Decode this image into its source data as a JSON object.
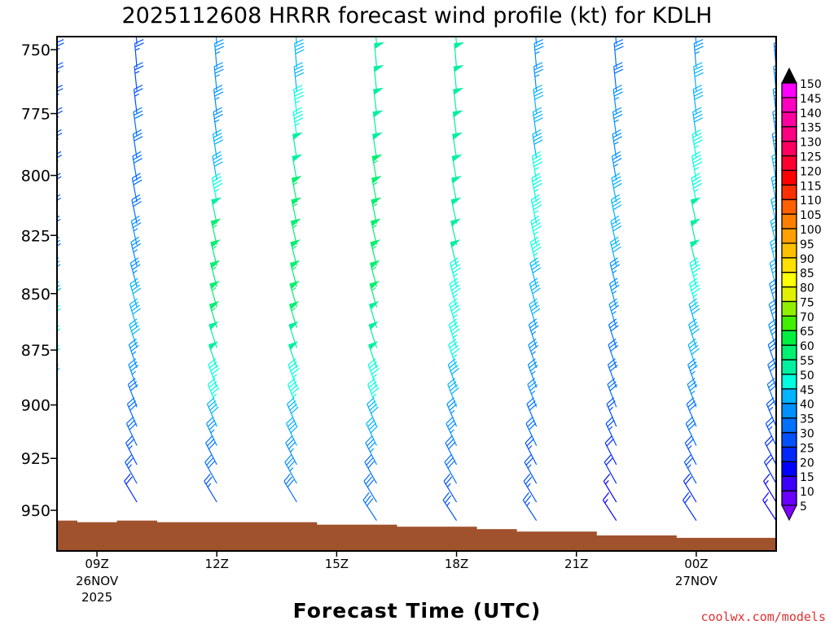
{
  "chart_data": {
    "type": "wind-barb-profile",
    "title": "2025112608 HRRR forecast wind profile (kt) for KDLH",
    "xlabel": "Forecast Time (UTC)",
    "ylabel": "",
    "credit": "coolwx.com/models",
    "ylim": [
      745,
      970
    ],
    "yticks": [
      750,
      775,
      800,
      825,
      850,
      875,
      900,
      925,
      950
    ],
    "xlim_hours_from_08Z": [
      0,
      18
    ],
    "xticks": [
      {
        "hour": 1,
        "label": "09Z",
        "sub1": "26NOV",
        "sub2": "2025"
      },
      {
        "hour": 4,
        "label": "12Z"
      },
      {
        "hour": 7,
        "label": "15Z"
      },
      {
        "hour": 10,
        "label": "18Z"
      },
      {
        "hour": 13,
        "label": "21Z"
      },
      {
        "hour": 16,
        "label": "00Z",
        "sub1": "27NOV"
      }
    ],
    "pressure_levels": [
      748,
      757,
      766,
      775,
      784,
      793,
      802,
      811,
      820,
      829,
      838,
      847,
      856,
      865,
      874,
      883,
      892,
      901,
      910,
      919,
      928,
      937,
      946,
      955
    ],
    "directions_deg": [
      355,
      355,
      354,
      353,
      352,
      351,
      350,
      349,
      348,
      347,
      346,
      345,
      344,
      343,
      342,
      341,
      340,
      339,
      337,
      335,
      333,
      331,
      329,
      327
    ],
    "columns": [
      {
        "hour": 0,
        "time": "08Z",
        "speeds": [
          25,
          25,
          25,
          25,
          25,
          25,
          25,
          25,
          25,
          25,
          30,
          35,
          40,
          45,
          45,
          45,
          40,
          35,
          30,
          25,
          20,
          20,
          15,
          15
        ]
      },
      {
        "hour": 2,
        "time": "10Z",
        "speeds": [
          25,
          25,
          25,
          25,
          30,
          30,
          30,
          30,
          30,
          35,
          35,
          35,
          40,
          40,
          40,
          35,
          35,
          30,
          30,
          30,
          25,
          25,
          20,
          20
        ]
      },
      {
        "hour": 4,
        "time": "12Z",
        "speeds": [
          35,
          35,
          35,
          35,
          35,
          40,
          40,
          45,
          50,
          55,
          55,
          55,
          55,
          55,
          50,
          50,
          45,
          45,
          40,
          35,
          30,
          30,
          25,
          25
        ]
      },
      {
        "hour": 6,
        "time": "14Z",
        "speeds": [
          40,
          40,
          40,
          45,
          45,
          50,
          50,
          55,
          55,
          55,
          55,
          55,
          55,
          55,
          50,
          50,
          45,
          45,
          40,
          40,
          35,
          35,
          30,
          30
        ]
      },
      {
        "hour": 8,
        "time": "16Z",
        "speeds": [
          50,
          50,
          50,
          50,
          50,
          50,
          55,
          55,
          55,
          55,
          55,
          55,
          55,
          50,
          50,
          50,
          45,
          45,
          40,
          40,
          35,
          30,
          30,
          30
        ]
      },
      {
        "hour": 10,
        "time": "18Z",
        "speeds": [
          50,
          50,
          50,
          50,
          50,
          50,
          50,
          50,
          50,
          50,
          50,
          45,
          45,
          45,
          45,
          45,
          40,
          40,
          35,
          35,
          30,
          30,
          25,
          25
        ]
      },
      {
        "hour": 12,
        "time": "20Z",
        "speeds": [
          35,
          35,
          35,
          40,
          40,
          40,
          45,
          45,
          45,
          45,
          45,
          40,
          40,
          40,
          35,
          35,
          35,
          35,
          30,
          30,
          25,
          25,
          25,
          25
        ]
      },
      {
        "hour": 14,
        "time": "22Z",
        "speeds": [
          30,
          30,
          30,
          35,
          35,
          35,
          35,
          40,
          40,
          40,
          40,
          35,
          35,
          35,
          30,
          30,
          30,
          30,
          25,
          25,
          20,
          20,
          15,
          15
        ]
      },
      {
        "hour": 16,
        "time": "00Z",
        "speeds": [
          35,
          35,
          40,
          40,
          40,
          45,
          45,
          45,
          50,
          50,
          50,
          45,
          45,
          40,
          40,
          40,
          35,
          35,
          30,
          30,
          25,
          25,
          20,
          20
        ]
      },
      {
        "hour": 18,
        "time": "02Z",
        "speeds": [
          30,
          30,
          35,
          35,
          35,
          35,
          40,
          40,
          40,
          40,
          40,
          40,
          35,
          35,
          35,
          30,
          30,
          30,
          25,
          25,
          20,
          20,
          15,
          15
        ]
      }
    ],
    "surface_pressure": [
      {
        "from_hour": 0,
        "to_hour": 0.5,
        "p": 955
      },
      {
        "from_hour": 0.5,
        "to_hour": 1.5,
        "p": 955.8
      },
      {
        "from_hour": 1.5,
        "to_hour": 2.5,
        "p": 955
      },
      {
        "from_hour": 2.5,
        "to_hour": 6.5,
        "p": 955.8
      },
      {
        "from_hour": 6.5,
        "to_hour": 8.5,
        "p": 957
      },
      {
        "from_hour": 8.5,
        "to_hour": 10.5,
        "p": 958
      },
      {
        "from_hour": 10.5,
        "to_hour": 11.5,
        "p": 959.2
      },
      {
        "from_hour": 11.5,
        "to_hour": 13.5,
        "p": 960.4
      },
      {
        "from_hour": 13.5,
        "to_hour": 15.5,
        "p": 962.3
      },
      {
        "from_hour": 15.5,
        "to_hour": 18,
        "p": 963.5
      }
    ],
    "terrain_color": "#a0522d",
    "colorbar": {
      "labels": [
        "150",
        "145",
        "140",
        "135",
        "130",
        "125",
        "120",
        "115",
        "110",
        "105",
        "100",
        "95",
        "90",
        "85",
        "80",
        "75",
        "70",
        "65",
        "60",
        "55",
        "50",
        "45",
        "40",
        "35",
        "30",
        "25",
        "20",
        "15",
        "10",
        "5"
      ],
      "bins_low_to_high": [
        5,
        10,
        15,
        20,
        25,
        30,
        35,
        40,
        45,
        50,
        55,
        60,
        65,
        70,
        75,
        80,
        85,
        90,
        95,
        100,
        105,
        110,
        115,
        120,
        125,
        130,
        135,
        140,
        145
      ],
      "colors_low_to_high": [
        "#6a00ff",
        "#3c00ff",
        "#0000ff",
        "#0028ff",
        "#0050ff",
        "#0070ff",
        "#0090ff",
        "#00b4ff",
        "#00ffe0",
        "#00f0a0",
        "#00f070",
        "#00f040",
        "#40f000",
        "#90f000",
        "#e0f000",
        "#ffff00",
        "#ffe000",
        "#ffc000",
        "#ffa000",
        "#ff8000",
        "#ff6000",
        "#ff3000",
        "#ff0000",
        "#ff0030",
        "#ff0060",
        "#ff0080",
        "#ff00a0",
        "#ff00c0",
        "#ff00ff"
      ],
      "under_color": "#7f00ff",
      "over_color": "#000000"
    }
  }
}
